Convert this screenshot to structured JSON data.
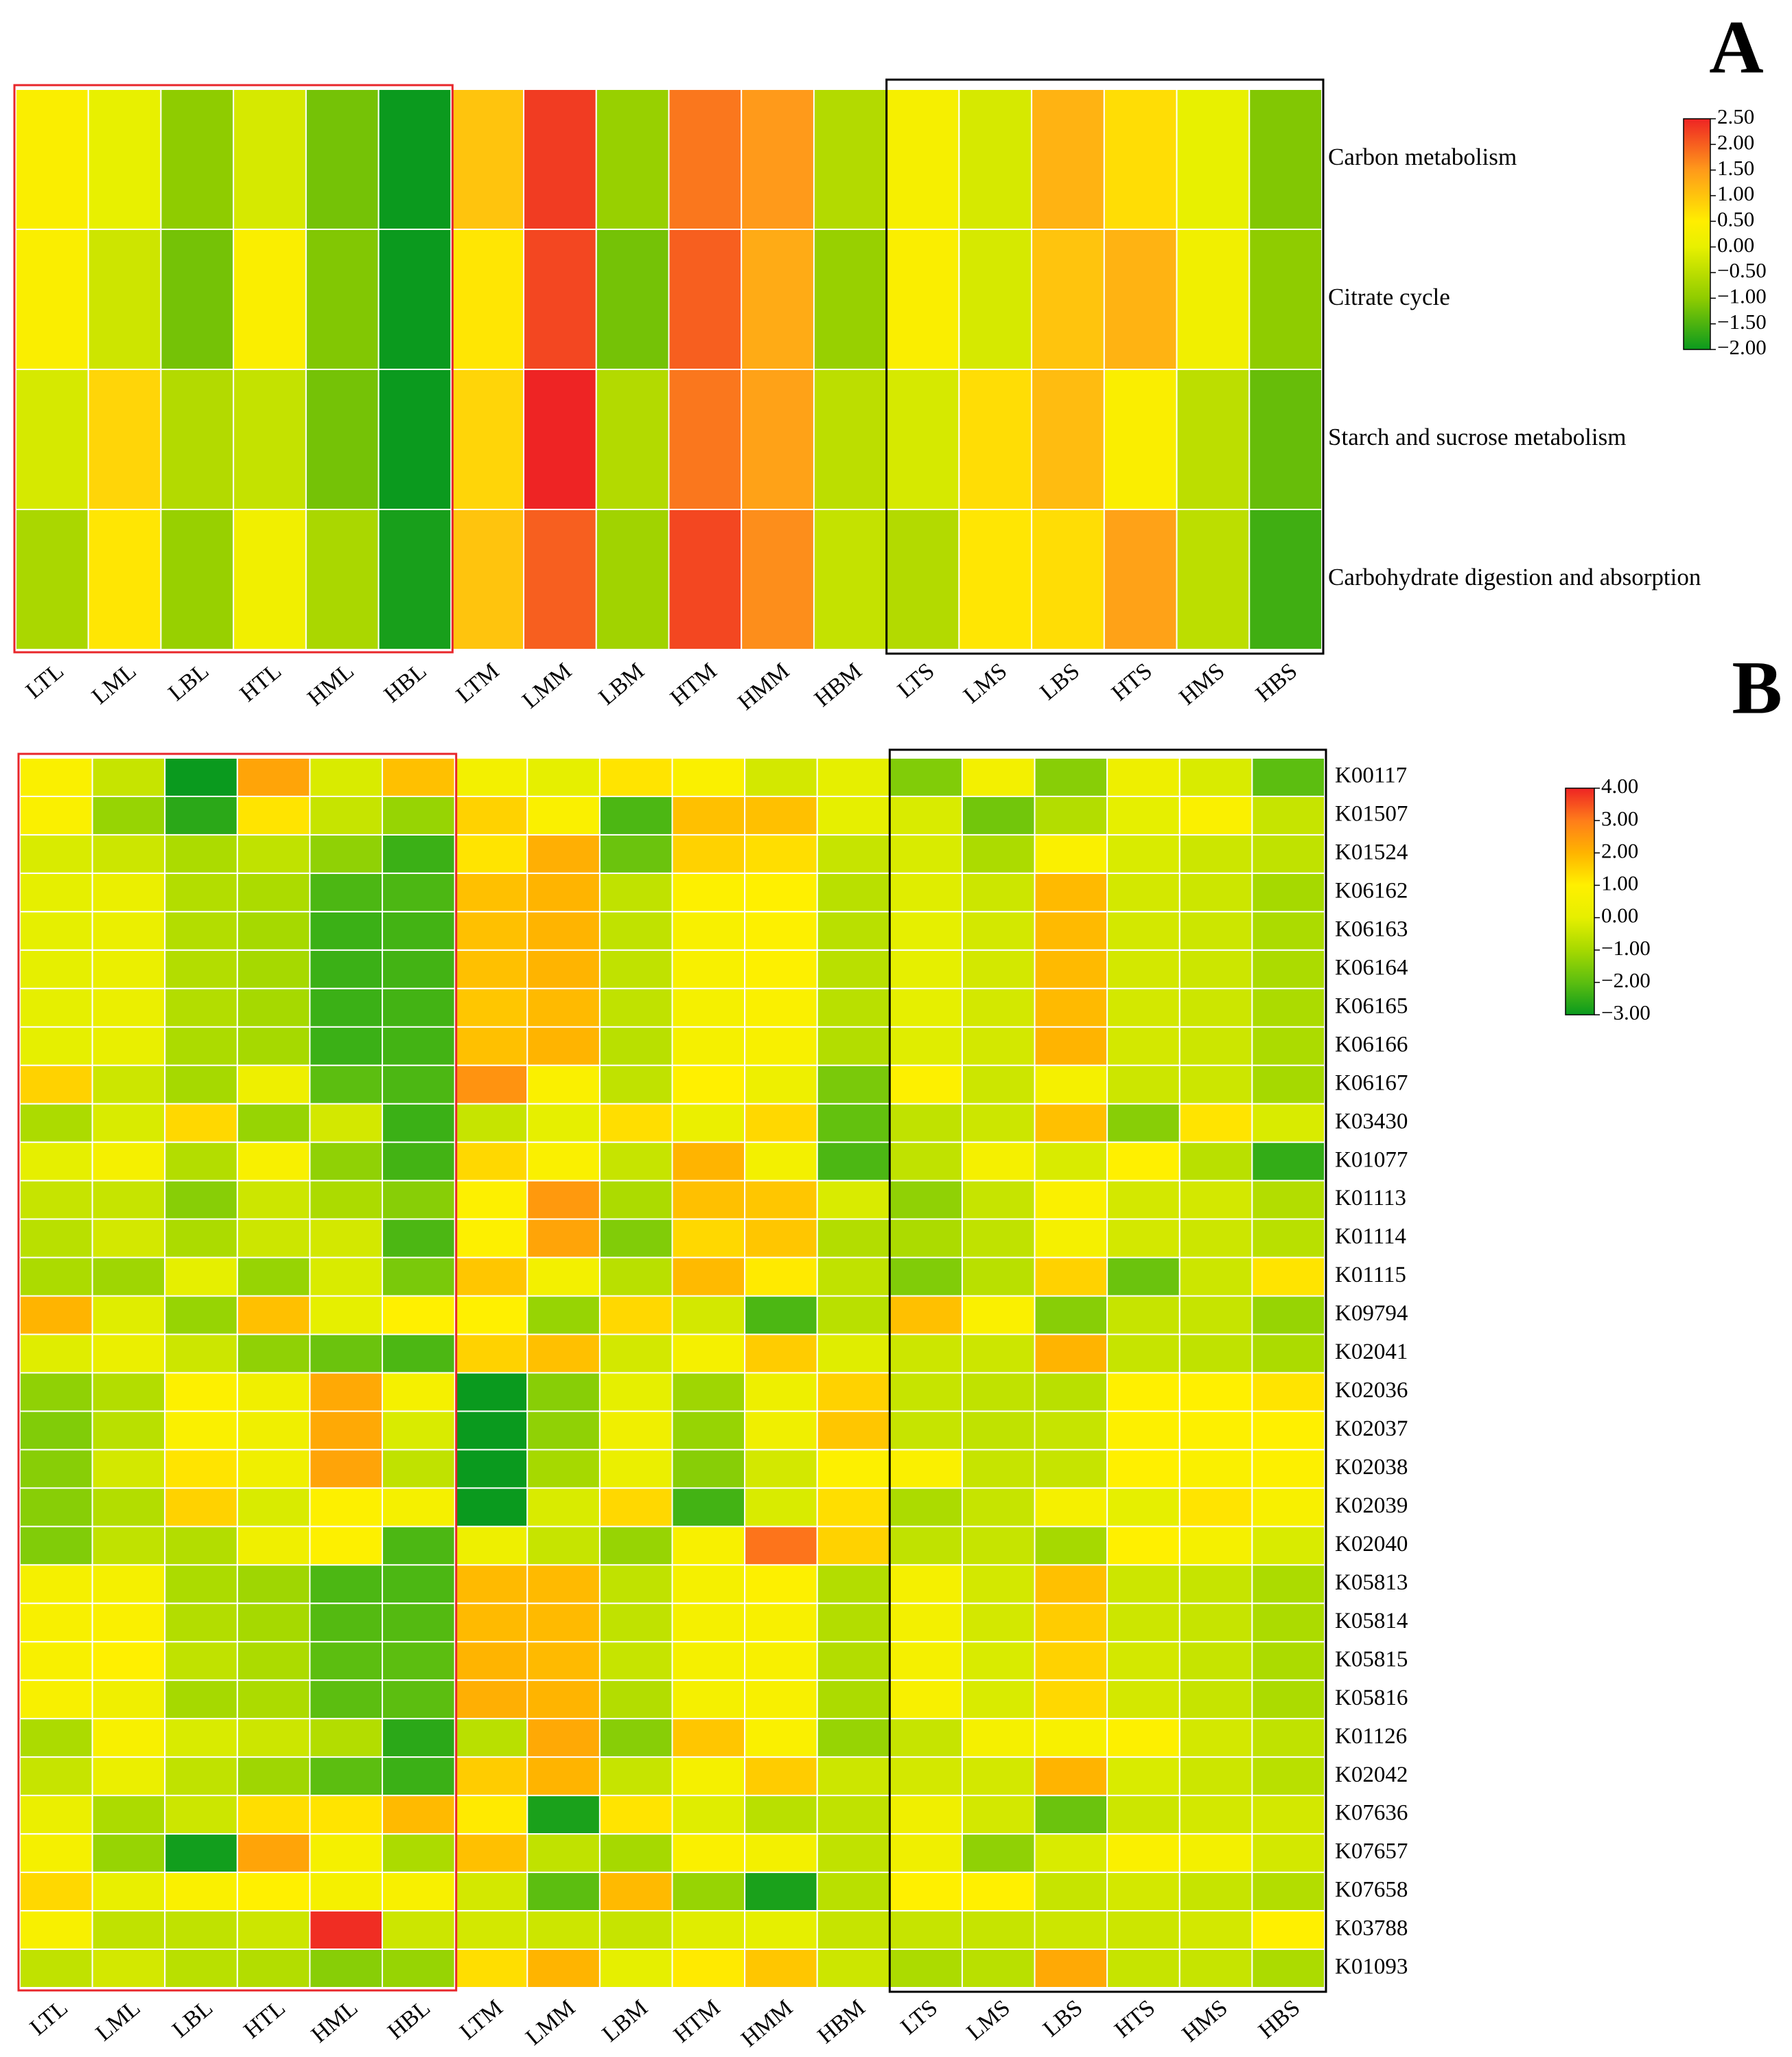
{
  "chart_data": [
    {
      "type": "heatmap",
      "panel_label": "A",
      "x": [
        "LTL",
        "LML",
        "LBL",
        "HTL",
        "HML",
        "HBL",
        "LTM",
        "LMM",
        "LBM",
        "HTM",
        "HMM",
        "HBM",
        "LTS",
        "LMS",
        "LBS",
        "HTS",
        "HMS",
        "HBS"
      ],
      "y": [
        "Carbon metabolism",
        "Citrate cycle",
        "Starch and sucrose metabolism",
        "Carbohydrate digestion and absorption"
      ],
      "values": [
        [
          0.4,
          0,
          -1,
          -0.2,
          -1.2,
          -2,
          1.0,
          2.3,
          -0.9,
          1.8,
          1.5,
          -0.6,
          0.3,
          -0.2,
          1.2,
          0.7,
          0,
          -1.1
        ],
        [
          0.4,
          -0.3,
          -1.2,
          0.4,
          -1.1,
          -2,
          0.6,
          2.2,
          -1.2,
          2.0,
          1.3,
          -0.9,
          0.4,
          -0.2,
          1.0,
          1.2,
          0.2,
          -1.0
        ],
        [
          -0.2,
          0.8,
          -0.6,
          -0.4,
          -1.2,
          -2,
          0.8,
          2.5,
          -0.6,
          1.8,
          1.4,
          -0.5,
          -0.2,
          0.7,
          1.1,
          0.4,
          -0.5,
          -1.3
        ],
        [
          -0.7,
          0.6,
          -0.9,
          0.2,
          -0.7,
          -1.9,
          1.0,
          2.0,
          -0.8,
          2.2,
          1.6,
          -0.4,
          -0.6,
          0.6,
          0.7,
          1.4,
          -0.5,
          -1.6
        ]
      ],
      "zlim": [
        -2,
        2.5
      ],
      "colorbar_ticks": [
        {
          "value": 2.5,
          "label": "2.50"
        },
        {
          "value": 2,
          "label": "2.00"
        },
        {
          "value": 1.5,
          "label": "1.50"
        },
        {
          "value": 1,
          "label": "1.00"
        },
        {
          "value": 0.5,
          "label": "0.50"
        },
        {
          "value": 0,
          "label": "0.00"
        },
        {
          "value": -0.5,
          "label": "−0.50"
        },
        {
          "value": -1,
          "label": "−1.00"
        },
        {
          "value": -1.5,
          "label": "−1.50"
        },
        {
          "value": -2,
          "label": "−2.00"
        }
      ],
      "colorscale": [
        [
          -2,
          "#0b9a1e"
        ],
        [
          -1,
          "#8fcc00"
        ],
        [
          0,
          "#e8f000"
        ],
        [
          0.5,
          "#ffee00"
        ],
        [
          1.5,
          "#ff9a1a"
        ],
        [
          2.5,
          "#ee2424"
        ]
      ]
    },
    {
      "type": "heatmap",
      "panel_label": "B",
      "x": [
        "LTL",
        "LML",
        "LBL",
        "HTL",
        "HML",
        "HBL",
        "LTM",
        "LMM",
        "LBM",
        "HTM",
        "HMM",
        "HBM",
        "LTS",
        "LMS",
        "LBS",
        "HTS",
        "HMS",
        "HBS"
      ],
      "y": [
        "K00117",
        "K01507",
        "K01524",
        "K06162",
        "K06163",
        "K06164",
        "K06165",
        "K06166",
        "K06167",
        "K03430",
        "K01077",
        "K01113",
        "K01114",
        "K01115",
        "K09794",
        "K02041",
        "K02036",
        "K02037",
        "K02038",
        "K02039",
        "K02040",
        "K05813",
        "K05814",
        "K05815",
        "K05816",
        "K01126",
        "K02042",
        "K07636",
        "K07657",
        "K07658",
        "K03788",
        "K01093"
      ],
      "values": [
        [
          0.8,
          -0.5,
          -3,
          2.3,
          -0.2,
          1.8,
          0.5,
          0,
          1.2,
          0.8,
          -0.3,
          0,
          -1.5,
          0.5,
          -1.4,
          0.3,
          -0.2,
          -2
        ],
        [
          0.8,
          -1.2,
          -2.6,
          1.2,
          -0.5,
          -1.2,
          1.5,
          0.8,
          -2.2,
          1.8,
          1.8,
          0,
          -0.2,
          -1.7,
          -0.8,
          0,
          0.8,
          -0.5
        ],
        [
          -0.2,
          -0.4,
          -0.9,
          -0.6,
          -1.3,
          -2.4,
          1.2,
          2.1,
          -1.8,
          1.5,
          1.3,
          -0.5,
          -0.2,
          -0.9,
          0.8,
          -0.2,
          -0.4,
          -0.6
        ],
        [
          0,
          0.2,
          -0.8,
          -0.9,
          -2.2,
          -2.2,
          1.8,
          2.0,
          -0.6,
          0.9,
          1.0,
          -0.7,
          -0.1,
          -0.4,
          1.9,
          -0.3,
          -0.4,
          -1.0
        ],
        [
          0,
          0.2,
          -0.8,
          -1.0,
          -2.4,
          -2.3,
          1.8,
          2.0,
          -0.6,
          0.7,
          0.9,
          -0.7,
          0,
          -0.3,
          1.9,
          -0.3,
          -0.4,
          -0.9
        ],
        [
          0,
          0.2,
          -0.8,
          -1.0,
          -2.4,
          -2.3,
          1.8,
          2.0,
          -0.6,
          0.7,
          0.9,
          -0.7,
          0,
          -0.3,
          1.9,
          -0.3,
          -0.4,
          -0.9
        ],
        [
          0,
          0.2,
          -0.8,
          -1.0,
          -2.4,
          -2.3,
          1.7,
          1.9,
          -0.6,
          0.6,
          0.8,
          -0.7,
          0,
          -0.3,
          1.9,
          -0.3,
          -0.4,
          -0.9
        ],
        [
          0,
          0.1,
          -0.9,
          -1.0,
          -2.4,
          -2.3,
          1.8,
          2.0,
          -0.7,
          0.6,
          0.7,
          -0.8,
          -0.1,
          -0.3,
          2.0,
          -0.3,
          -0.4,
          -0.9
        ],
        [
          1.5,
          -0.4,
          -1.0,
          0.3,
          -2.0,
          -2.2,
          2.6,
          0.8,
          -0.6,
          1.0,
          0.3,
          -1.6,
          0.9,
          -0.4,
          0.6,
          -0.4,
          -0.4,
          -1.0
        ],
        [
          -0.9,
          -0.2,
          1.4,
          -1.2,
          -0.3,
          -2.4,
          -0.5,
          0,
          1.3,
          0.2,
          1.4,
          -1.9,
          -0.6,
          -0.4,
          1.8,
          -1.4,
          1.2,
          -0.2
        ],
        [
          0,
          0.6,
          -0.8,
          0.7,
          -1.3,
          -2.3,
          1.4,
          0.8,
          -0.5,
          2.0,
          0.5,
          -2.2,
          -0.6,
          0.6,
          -0.2,
          1.0,
          -0.7,
          -2.5
        ],
        [
          -0.5,
          -0.5,
          -1.4,
          -0.4,
          -0.9,
          -1.4,
          0.9,
          2.5,
          -0.9,
          1.8,
          1.7,
          -0.2,
          -1.3,
          -0.5,
          0.8,
          -0.3,
          -0.3,
          -0.8
        ],
        [
          -0.7,
          -0.3,
          -0.9,
          -0.4,
          -0.3,
          -2.2,
          0.9,
          2.3,
          -1.5,
          1.4,
          1.7,
          -0.8,
          -0.9,
          -0.6,
          0.6,
          -0.3,
          -0.4,
          -0.7
        ],
        [
          -0.9,
          -1.1,
          0,
          -1.2,
          -0.2,
          -1.6,
          1.7,
          0.5,
          -0.7,
          1.9,
          1.1,
          -0.6,
          -1.5,
          -0.7,
          1.5,
          -1.8,
          -0.4,
          1.2
        ],
        [
          2.0,
          -0.1,
          -1.2,
          1.8,
          0,
          1.0,
          1.0,
          -1.2,
          1.4,
          -0.3,
          -2.2,
          -0.7,
          1.8,
          0.8,
          -1.4,
          -0.5,
          -0.5,
          -1.2
        ],
        [
          -0.1,
          0.2,
          -0.4,
          -1.3,
          -1.8,
          -2.2,
          1.5,
          1.8,
          -0.3,
          0.6,
          1.6,
          -0.1,
          -0.4,
          -0.4,
          2.0,
          -0.5,
          -0.6,
          -0.9
        ],
        [
          -1.3,
          -0.8,
          0.9,
          0.4,
          2.2,
          0.6,
          -3,
          -1.4,
          0,
          -1.1,
          0.3,
          1.5,
          -0.5,
          -0.6,
          -0.7,
          1.0,
          1.0,
          1.2
        ],
        [
          -1.5,
          -0.7,
          0.8,
          0.4,
          2.2,
          -0.2,
          -3,
          -1.3,
          0.4,
          -1.2,
          0.4,
          1.7,
          -0.5,
          -0.6,
          -0.5,
          0.9,
          0.9,
          1.0
        ],
        [
          -1.4,
          -0.3,
          1.2,
          0.4,
          2.3,
          -0.6,
          -3,
          -1.0,
          0.2,
          -1.4,
          -0.3,
          0.9,
          0.8,
          -0.5,
          -0.5,
          1.0,
          0.8,
          0.9
        ],
        [
          -1.4,
          -0.8,
          1.5,
          -0.2,
          0.9,
          0.6,
          -3,
          -0.2,
          1.4,
          -2.3,
          -0.2,
          1.3,
          -0.9,
          -0.5,
          0.6,
          0,
          1.2,
          0.7
        ],
        [
          -1.5,
          -0.6,
          -0.8,
          0.4,
          0.9,
          -2.2,
          0.3,
          -0.5,
          -1.2,
          0.7,
          3.1,
          1.5,
          -0.6,
          -0.5,
          -1.0,
          1.0,
          0.6,
          -0.2
        ],
        [
          0.6,
          0.6,
          -0.9,
          -1.1,
          -2.2,
          -2.2,
          1.9,
          1.9,
          -0.6,
          0.6,
          0.9,
          -0.8,
          0.6,
          -0.3,
          1.8,
          -0.4,
          -0.5,
          -0.9
        ],
        [
          0.7,
          0.8,
          -0.8,
          -1.0,
          -2.1,
          -2.1,
          1.9,
          1.9,
          -0.6,
          0.6,
          0.7,
          -0.8,
          0.5,
          -0.3,
          1.6,
          -0.4,
          -0.5,
          -0.9
        ],
        [
          0.7,
          1.0,
          -0.6,
          -0.9,
          -2.0,
          -2.0,
          2.0,
          1.9,
          -0.5,
          0.6,
          0.7,
          -0.8,
          0.6,
          -0.2,
          1.5,
          -0.3,
          -0.5,
          -0.9
        ],
        [
          0.7,
          0.4,
          -1.0,
          -0.9,
          -2.0,
          -2.0,
          2.1,
          2.0,
          -0.8,
          0.6,
          0.7,
          -0.9,
          0.7,
          -0.2,
          1.4,
          -0.3,
          -0.5,
          -0.9
        ],
        [
          -0.9,
          0.7,
          -0.2,
          -0.4,
          -0.8,
          -2.6,
          -0.7,
          2.2,
          -1.4,
          1.7,
          0.8,
          -1.2,
          -0.5,
          0.6,
          0.7,
          0.9,
          -0.3,
          -0.6
        ],
        [
          -0.5,
          0.2,
          -0.6,
          -1.1,
          -2.0,
          -2.4,
          1.6,
          2.0,
          -0.5,
          0.6,
          1.6,
          -0.4,
          -0.3,
          -0.3,
          2.0,
          -0.2,
          -0.4,
          -0.7
        ],
        [
          0.2,
          -0.9,
          -0.4,
          1.3,
          1.2,
          1.9,
          1.1,
          -2.8,
          1.2,
          -0.1,
          -0.7,
          -0.6,
          0.4,
          -0.3,
          -1.8,
          -0.4,
          -0.3,
          -0.3
        ],
        [
          0.6,
          -1.2,
          -2.9,
          2.3,
          0.6,
          -0.9,
          1.8,
          -0.6,
          -1.0,
          0.8,
          0.5,
          -0.6,
          0.4,
          -1.3,
          -0.2,
          0.8,
          0.5,
          -0.3
        ],
        [
          1.4,
          0.1,
          0.8,
          1.0,
          0.6,
          0.7,
          -0.3,
          -2.0,
          1.9,
          -1.2,
          -2.8,
          -0.7,
          1.0,
          1.0,
          -0.5,
          -0.3,
          -0.5,
          -0.8
        ],
        [
          0.7,
          -0.6,
          -0.6,
          -0.4,
          3.9,
          -0.4,
          -0.3,
          -0.4,
          -0.5,
          -0.1,
          0,
          -0.5,
          -0.5,
          -0.5,
          -0.4,
          -0.4,
          -0.3,
          1.0
        ],
        [
          -0.6,
          -0.3,
          -0.7,
          -0.8,
          -1.4,
          -1.2,
          1.3,
          2.0,
          0,
          1.1,
          1.7,
          -0.4,
          -0.9,
          -0.7,
          2.2,
          -0.5,
          -0.5,
          -0.9
        ]
      ],
      "zlim": [
        -3,
        4
      ],
      "colorbar_ticks": [
        {
          "value": 4,
          "label": "4.00"
        },
        {
          "value": 3,
          "label": "3.00"
        },
        {
          "value": 2,
          "label": "2.00"
        },
        {
          "value": 1,
          "label": "1.00"
        },
        {
          "value": 0,
          "label": "0.00"
        },
        {
          "value": -1,
          "label": "−1.00"
        },
        {
          "value": -2,
          "label": "−2.00"
        },
        {
          "value": -3,
          "label": "−3.00"
        }
      ],
      "colorscale": [
        [
          -3,
          "#0a9a1e"
        ],
        [
          -2,
          "#5cbe10"
        ],
        [
          -1,
          "#a6d900"
        ],
        [
          0,
          "#e6ef00"
        ],
        [
          1,
          "#fff000"
        ],
        [
          2,
          "#ffb400"
        ],
        [
          3,
          "#ff7d1a"
        ],
        [
          4,
          "#ee2424"
        ]
      ]
    }
  ]
}
